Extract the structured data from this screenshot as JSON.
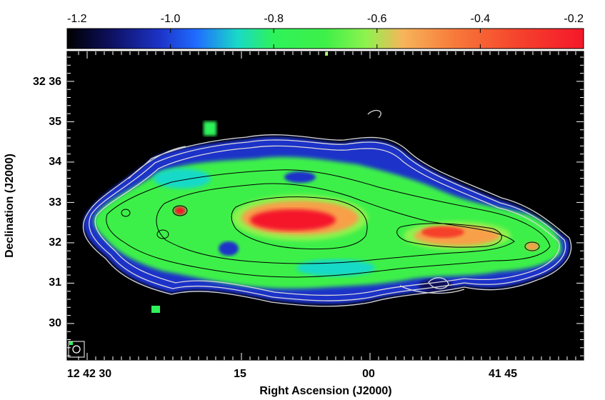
{
  "colorbar": {
    "tick_labels": [
      "-1.2",
      "-1.0",
      "-0.8",
      "-0.6",
      "-0.4",
      "-0.2"
    ],
    "tick_values": [
      -1.2,
      -1.0,
      -0.8,
      -0.6,
      -0.4,
      -0.2
    ],
    "range": [
      -1.2,
      -0.2
    ],
    "colormap_stops": [
      "#000000",
      "#1a1e9a",
      "#1f6cff",
      "#19d9c8",
      "#2ef25a",
      "#8ff24e",
      "#f7b45a",
      "#f5582b",
      "#f5172a"
    ]
  },
  "axes": {
    "xlabel": "Right Ascension (J2000)",
    "ylabel": "Declination (J2000)",
    "x_tick_labels": [
      "12 42 30",
      "15",
      "00",
      "41 45"
    ],
    "y_tick_labels": [
      "32 36",
      "35",
      "34",
      "33",
      "32",
      "31",
      "30"
    ]
  },
  "image": {
    "background": "#000000",
    "beam_marker": "circle",
    "contour_colors": {
      "outer": "#d8d8d8",
      "inner": "#000000"
    }
  }
}
